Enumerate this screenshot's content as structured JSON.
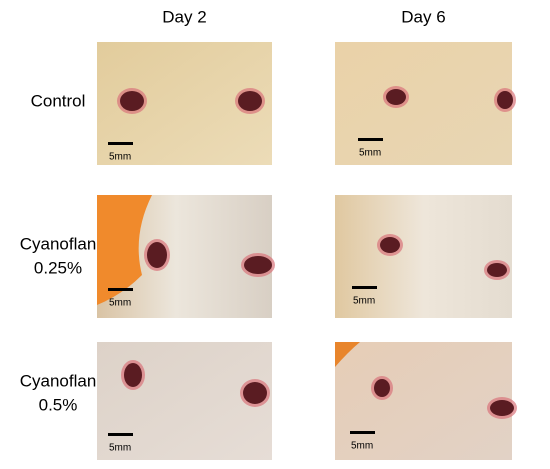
{
  "columns": [
    "Day 2",
    "Day 6"
  ],
  "rows": [
    {
      "label": [
        "Control"
      ],
      "scale_bars": [
        "5mm",
        "5mm"
      ]
    },
    {
      "label": [
        "Cyanoflan",
        "0.25%"
      ],
      "scale_bars": [
        "5mm",
        "5mm"
      ]
    },
    {
      "label": [
        "Cyanoflan",
        "0.5%"
      ],
      "scale_bars": [
        "5mm",
        "5mm"
      ]
    }
  ]
}
